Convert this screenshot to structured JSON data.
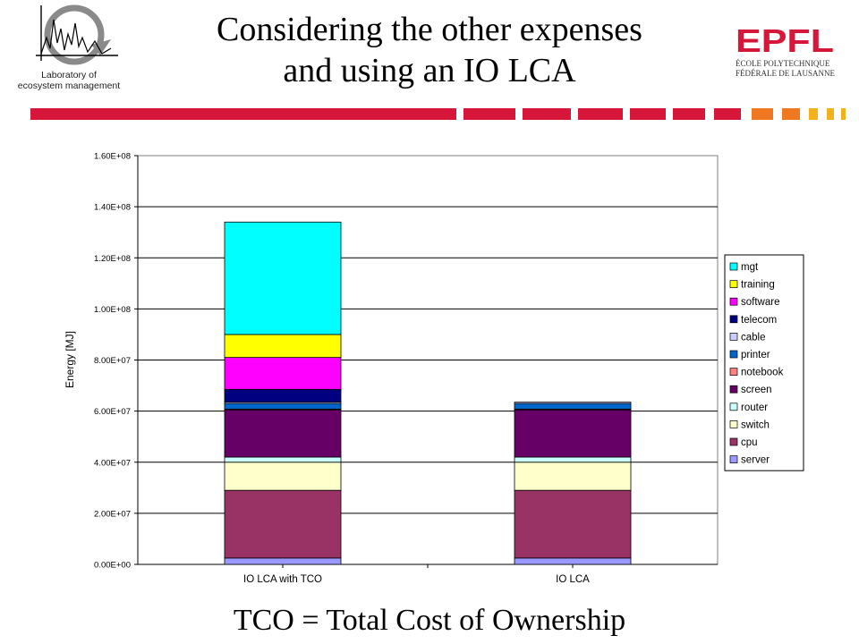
{
  "title_line1": "Considering the other expenses",
  "title_line2": "and using an IO LCA",
  "lab_line1": "Laboratory of",
  "lab_line2": "ecosystem management",
  "logo_text": "EPFL",
  "logo_sub1": "ÉCOLE POLYTECHNIQUE",
  "logo_sub2": "FÉDÉRALE DE LAUSANNE",
  "footer": "TCO = Total Cost of Ownership",
  "colors": {
    "accent_red": "#d6173a",
    "accent_orange": "#f07820",
    "accent_yellow": "#f3b21b"
  },
  "chart_data": {
    "type": "bar",
    "stacked": true,
    "categories": [
      "IO LCA with TCO",
      "IO LCA"
    ],
    "ylabel": "Energy [MJ]",
    "xlabel": "",
    "ylim": [
      0,
      160000000
    ],
    "yticks": [
      0,
      20000000,
      40000000,
      60000000,
      80000000,
      100000000,
      120000000,
      140000000,
      160000000
    ],
    "ytick_labels": [
      "0.00E+00",
      "2.00E+07",
      "4.00E+07",
      "6.00E+07",
      "8.00E+07",
      "1.00E+08",
      "1.20E+08",
      "1.40E+08",
      "1.60E+08"
    ],
    "grid": true,
    "legend": "right",
    "series": [
      {
        "name": "server",
        "color": "#9999ff",
        "values": [
          2500000,
          2500000
        ]
      },
      {
        "name": "cpu",
        "color": "#993366",
        "values": [
          26500000,
          26500000
        ]
      },
      {
        "name": "switch",
        "color": "#ffffcc",
        "values": [
          11000000,
          11000000
        ]
      },
      {
        "name": "router",
        "color": "#ccffff",
        "values": [
          2000000,
          2000000
        ]
      },
      {
        "name": "screen",
        "color": "#660066",
        "values": [
          18500000,
          18500000
        ]
      },
      {
        "name": "notebook",
        "color": "#ff8080",
        "values": [
          300000,
          300000
        ]
      },
      {
        "name": "printer",
        "color": "#0066cc",
        "values": [
          2200000,
          2200000
        ]
      },
      {
        "name": "cable",
        "color": "#ccccff",
        "values": [
          500000,
          500000
        ]
      },
      {
        "name": "telecom",
        "color": "#000080",
        "values": [
          5000000,
          0
        ]
      },
      {
        "name": "software",
        "color": "#ff00ff",
        "values": [
          12500000,
          0
        ]
      },
      {
        "name": "training",
        "color": "#ffff00",
        "values": [
          9000000,
          0
        ]
      },
      {
        "name": "mgt",
        "color": "#00ffff",
        "values": [
          44000000,
          0
        ]
      }
    ]
  }
}
